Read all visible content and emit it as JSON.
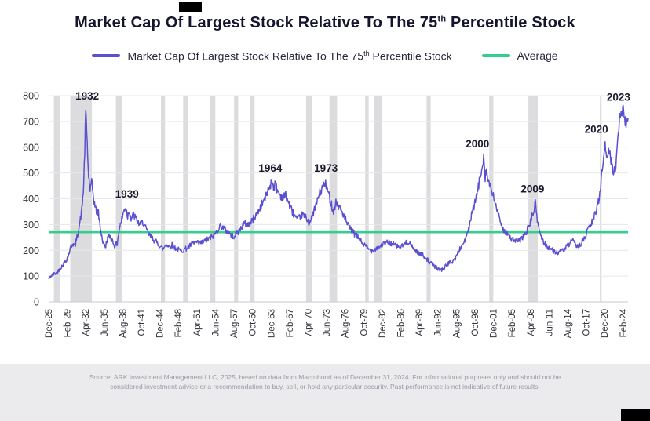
{
  "title": {
    "pre": "Market Cap Of Largest Stock Relative To The 75",
    "sup": "th",
    "post": " Percentile Stock"
  },
  "legend": {
    "series_label_pre": "Market Cap Of Largest Stock Relative To The 75",
    "series_label_sup": "th",
    "series_label_post": " Percentile Stock",
    "average_label": "Average"
  },
  "source": {
    "line1": "Source: ARK Investment Management LLC, 2025, based on data from Macrobond as of December 31, 2024. For informational purposes only and should not be",
    "line2": "considered investment advice or a recommendation to buy, sell, or hold any particular security. Past performance is not indicative of future results."
  },
  "chart_data": {
    "type": "line",
    "title": "Market Cap Of Largest Stock Relative To The 75th Percentile Stock",
    "xlabel": "",
    "ylabel": "",
    "ylim": [
      0,
      800
    ],
    "y_ticks": [
      0,
      100,
      200,
      300,
      400,
      500,
      600,
      700,
      800
    ],
    "x_start_year": 1925.917,
    "x_end_year": 2024.917,
    "x_tick_interval_months": 38,
    "x_tick_labels": [
      "Dec-25",
      "Feb-29",
      "Apr-32",
      "Jun-35",
      "Aug-38",
      "Oct-41",
      "Dec-44",
      "Feb-48",
      "Apr-51",
      "Jun-54",
      "Aug-57",
      "Oct-60",
      "Dec-63",
      "Feb-67",
      "Apr-70",
      "Jun-73",
      "Aug-76",
      "Oct-79",
      "Dec-82",
      "Feb-86",
      "Apr-89",
      "Jun-92",
      "Aug-95",
      "Oct-98",
      "Dec-01",
      "Feb-05",
      "Apr-08",
      "Jun-11",
      "Aug-14",
      "Oct-17",
      "Dec-20",
      "Feb-24"
    ],
    "grid": true,
    "legend_position": "top",
    "average": 270,
    "average_color": "#35ce8d",
    "recession_color": "#dcdcdf",
    "recessions": [
      [
        1926.8,
        1927.9
      ],
      [
        1929.6,
        1933.3
      ],
      [
        1937.4,
        1938.5
      ],
      [
        1945.1,
        1945.8
      ],
      [
        1948.9,
        1949.8
      ],
      [
        1953.5,
        1954.4
      ],
      [
        1957.6,
        1958.3
      ],
      [
        1960.3,
        1961.1
      ],
      [
        1969.9,
        1970.9
      ],
      [
        1973.9,
        1975.2
      ],
      [
        1980.0,
        1980.6
      ],
      [
        1981.5,
        1982.9
      ],
      [
        1990.5,
        1991.2
      ],
      [
        2001.2,
        2001.9
      ],
      [
        2007.9,
        2009.5
      ],
      [
        2020.1,
        2020.4
      ]
    ],
    "annotations": [
      {
        "text": "1932",
        "year": 1932.5,
        "value": 785
      },
      {
        "text": "1939",
        "year": 1939.3,
        "value": 405
      },
      {
        "text": "1964",
        "year": 1963.8,
        "value": 505
      },
      {
        "text": "1973",
        "year": 1973.3,
        "value": 505
      },
      {
        "text": "2000",
        "year": 1999.2,
        "value": 600
      },
      {
        "text": "2009",
        "year": 2008.6,
        "value": 425
      },
      {
        "text": "2020",
        "year": 2019.5,
        "value": 655
      },
      {
        "text": "2023",
        "year": 2023.3,
        "value": 780
      }
    ],
    "series": [
      {
        "name": "Market Cap Of Largest Stock Relative To The 75th Percentile Stock",
        "color": "#5b50d2",
        "anchors": [
          [
            1925.92,
            90
          ],
          [
            1926.3,
            100
          ],
          [
            1926.8,
            108
          ],
          [
            1927.3,
            112
          ],
          [
            1927.8,
            128
          ],
          [
            1928.3,
            142
          ],
          [
            1928.8,
            158
          ],
          [
            1929.2,
            175
          ],
          [
            1929.6,
            205
          ],
          [
            1930,
            228
          ],
          [
            1930.4,
            215
          ],
          [
            1930.8,
            255
          ],
          [
            1931.2,
            300
          ],
          [
            1931.6,
            360
          ],
          [
            1931.9,
            450
          ],
          [
            1932.1,
            600
          ],
          [
            1932.25,
            740
          ],
          [
            1932.5,
            620
          ],
          [
            1932.7,
            500
          ],
          [
            1933,
            430
          ],
          [
            1933.3,
            465
          ],
          [
            1933.6,
            400
          ],
          [
            1934,
            355
          ],
          [
            1934.4,
            345
          ],
          [
            1934.8,
            280
          ],
          [
            1935.2,
            230
          ],
          [
            1935.6,
            212
          ],
          [
            1936,
            248
          ],
          [
            1936.4,
            255
          ],
          [
            1936.8,
            238
          ],
          [
            1937.2,
            218
          ],
          [
            1937.6,
            225
          ],
          [
            1938,
            285
          ],
          [
            1938.4,
            320
          ],
          [
            1938.8,
            355
          ],
          [
            1939.1,
            370
          ],
          [
            1939.4,
            330
          ],
          [
            1939.7,
            358
          ],
          [
            1940,
            322
          ],
          [
            1940.4,
            338
          ],
          [
            1940.8,
            325
          ],
          [
            1941.2,
            308
          ],
          [
            1941.6,
            298
          ],
          [
            1942,
            312
          ],
          [
            1942.5,
            285
          ],
          [
            1943,
            262
          ],
          [
            1943.5,
            250
          ],
          [
            1944,
            238
          ],
          [
            1944.5,
            228
          ],
          [
            1945,
            215
          ],
          [
            1945.5,
            205
          ],
          [
            1946,
            226
          ],
          [
            1946.5,
            214
          ],
          [
            1947,
            221
          ],
          [
            1947.5,
            210
          ],
          [
            1948,
            204
          ],
          [
            1948.5,
            198
          ],
          [
            1949,
            202
          ],
          [
            1949.5,
            208
          ],
          [
            1950,
            216
          ],
          [
            1950.5,
            226
          ],
          [
            1951,
            231
          ],
          [
            1951.5,
            226
          ],
          [
            1952,
            229
          ],
          [
            1952.5,
            234
          ],
          [
            1953,
            241
          ],
          [
            1953.5,
            248
          ],
          [
            1954,
            256
          ],
          [
            1954.5,
            268
          ],
          [
            1955,
            288
          ],
          [
            1955.4,
            296
          ],
          [
            1955.8,
            286
          ],
          [
            1956.2,
            278
          ],
          [
            1956.6,
            270
          ],
          [
            1957,
            262
          ],
          [
            1957.4,
            254
          ],
          [
            1957.8,
            260
          ],
          [
            1958.2,
            268
          ],
          [
            1958.6,
            280
          ],
          [
            1959,
            294
          ],
          [
            1959.4,
            304
          ],
          [
            1959.8,
            298
          ],
          [
            1960.2,
            304
          ],
          [
            1960.6,
            312
          ],
          [
            1961,
            326
          ],
          [
            1961.5,
            342
          ],
          [
            1962,
            362
          ],
          [
            1962.5,
            386
          ],
          [
            1963,
            408
          ],
          [
            1963.4,
            432
          ],
          [
            1963.8,
            455
          ],
          [
            1964.1,
            470
          ],
          [
            1964.4,
            446
          ],
          [
            1964.7,
            458
          ],
          [
            1965,
            432
          ],
          [
            1965.5,
            415
          ],
          [
            1966,
            402
          ],
          [
            1966.4,
            416
          ],
          [
            1966.8,
            392
          ],
          [
            1967.2,
            368
          ],
          [
            1967.6,
            348
          ],
          [
            1968,
            332
          ],
          [
            1968.4,
            318
          ],
          [
            1968.8,
            326
          ],
          [
            1969.2,
            340
          ],
          [
            1969.6,
            332
          ],
          [
            1970,
            324
          ],
          [
            1970.4,
            308
          ],
          [
            1970.8,
            318
          ],
          [
            1971.2,
            352
          ],
          [
            1971.6,
            372
          ],
          [
            1972,
            408
          ],
          [
            1972.4,
            428
          ],
          [
            1972.8,
            448
          ],
          [
            1973.2,
            460
          ],
          [
            1973.5,
            438
          ],
          [
            1973.8,
            415
          ],
          [
            1974.2,
            382
          ],
          [
            1974.6,
            352
          ],
          [
            1975,
            388
          ],
          [
            1975.4,
            372
          ],
          [
            1975.8,
            360
          ],
          [
            1976.2,
            342
          ],
          [
            1976.6,
            322
          ],
          [
            1977,
            298
          ],
          [
            1977.5,
            282
          ],
          [
            1978,
            268
          ],
          [
            1978.5,
            256
          ],
          [
            1979,
            246
          ],
          [
            1979.5,
            228
          ],
          [
            1980,
            218
          ],
          [
            1980.5,
            206
          ],
          [
            1981,
            198
          ],
          [
            1981.5,
            204
          ],
          [
            1982,
            209
          ],
          [
            1982.5,
            214
          ],
          [
            1983,
            222
          ],
          [
            1983.5,
            228
          ],
          [
            1984,
            232
          ],
          [
            1984.5,
            226
          ],
          [
            1985,
            221
          ],
          [
            1985.5,
            215
          ],
          [
            1986,
            212
          ],
          [
            1986.5,
            220
          ],
          [
            1987,
            228
          ],
          [
            1987.5,
            235
          ],
          [
            1988,
            212
          ],
          [
            1988.5,
            202
          ],
          [
            1989,
            192
          ],
          [
            1989.5,
            185
          ],
          [
            1990,
            178
          ],
          [
            1990.5,
            168
          ],
          [
            1991,
            152
          ],
          [
            1991.5,
            145
          ],
          [
            1992,
            136
          ],
          [
            1992.5,
            128
          ],
          [
            1993,
            124
          ],
          [
            1993.5,
            131
          ],
          [
            1994,
            146
          ],
          [
            1994.5,
            152
          ],
          [
            1995,
            158
          ],
          [
            1995.5,
            172
          ],
          [
            1996,
            198
          ],
          [
            1996.5,
            216
          ],
          [
            1997,
            238
          ],
          [
            1997.5,
            262
          ],
          [
            1998,
            318
          ],
          [
            1998.4,
            352
          ],
          [
            1998.8,
            390
          ],
          [
            1999.2,
            428
          ],
          [
            1999.5,
            465
          ],
          [
            1999.8,
            500
          ],
          [
            2000.1,
            545
          ],
          [
            2000.3,
            570
          ],
          [
            2000.5,
            485
          ],
          [
            2000.7,
            515
          ],
          [
            2000.9,
            480
          ],
          [
            2001.2,
            462
          ],
          [
            2001.5,
            432
          ],
          [
            2002,
            402
          ],
          [
            2002.5,
            362
          ],
          [
            2003,
            312
          ],
          [
            2003.5,
            288
          ],
          [
            2004,
            268
          ],
          [
            2004.5,
            255
          ],
          [
            2005,
            245
          ],
          [
            2005.5,
            238
          ],
          [
            2006,
            232
          ],
          [
            2006.5,
            240
          ],
          [
            2007,
            252
          ],
          [
            2007.5,
            268
          ],
          [
            2008,
            295
          ],
          [
            2008.4,
            322
          ],
          [
            2008.8,
            352
          ],
          [
            2009.1,
            382
          ],
          [
            2009.4,
            318
          ],
          [
            2009.7,
            285
          ],
          [
            2010,
            258
          ],
          [
            2010.5,
            232
          ],
          [
            2011,
            218
          ],
          [
            2011.5,
            208
          ],
          [
            2012,
            200
          ],
          [
            2012.5,
            194
          ],
          [
            2013,
            190
          ],
          [
            2013.5,
            196
          ],
          [
            2014,
            203
          ],
          [
            2014.5,
            214
          ],
          [
            2015,
            228
          ],
          [
            2015.5,
            235
          ],
          [
            2016,
            222
          ],
          [
            2016.5,
            216
          ],
          [
            2017,
            231
          ],
          [
            2017.5,
            246
          ],
          [
            2018,
            278
          ],
          [
            2018.5,
            298
          ],
          [
            2019,
            318
          ],
          [
            2019.5,
            355
          ],
          [
            2019.9,
            395
          ],
          [
            2020.2,
            440
          ],
          [
            2020.5,
            520
          ],
          [
            2020.8,
            585
          ],
          [
            2021,
            602
          ],
          [
            2021.3,
            562
          ],
          [
            2021.6,
            588
          ],
          [
            2021.9,
            560
          ],
          [
            2022.2,
            532
          ],
          [
            2022.5,
            498
          ],
          [
            2022.8,
            520
          ],
          [
            2023.1,
            622
          ],
          [
            2023.4,
            695
          ],
          [
            2023.7,
            762
          ],
          [
            2023.9,
            725
          ],
          [
            2024.1,
            742
          ],
          [
            2024.4,
            700
          ],
          [
            2024.7,
            688
          ],
          [
            2024.92,
            705
          ]
        ]
      }
    ]
  }
}
